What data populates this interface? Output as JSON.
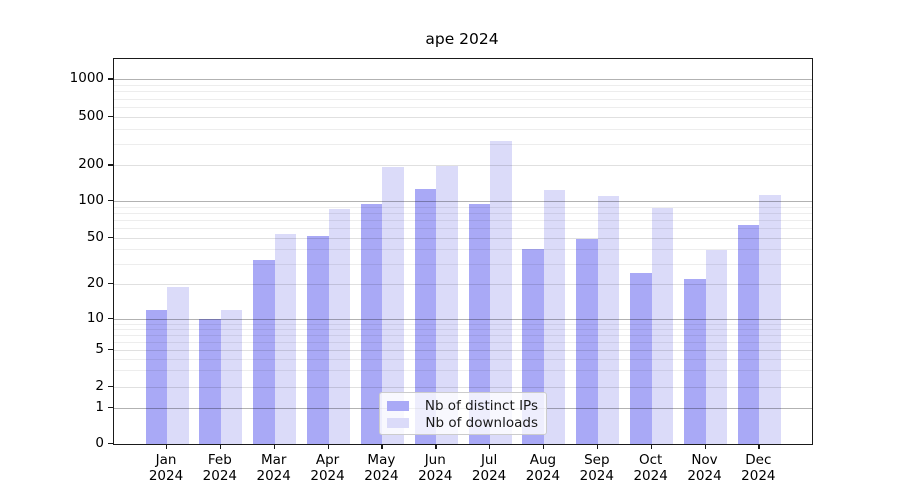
{
  "title": "ape 2024",
  "legend": {
    "items": [
      {
        "label": "Nb of distinct IPs",
        "color": "#a9a9f6"
      },
      {
        "label": "Nb of downloads",
        "color": "#dbdbf9"
      }
    ]
  },
  "chart_data": {
    "type": "bar",
    "title": "ape 2024",
    "categories": [
      "Jan 2024",
      "Feb 2024",
      "Mar 2024",
      "Apr 2024",
      "May 2024",
      "Jun 2024",
      "Jul 2024",
      "Aug 2024",
      "Sep 2024",
      "Oct 2024",
      "Nov 2024",
      "Dec 2024"
    ],
    "series": [
      {
        "name": "Nb of distinct IPs",
        "color": "#a9a9f6",
        "values": [
          12,
          10,
          32,
          52,
          94,
          127,
          95,
          40,
          49,
          25,
          22,
          64
        ]
      },
      {
        "name": "Nb of downloads",
        "color": "#dbdbf9",
        "values": [
          19,
          12,
          54,
          86,
          193,
          198,
          315,
          124,
          110,
          87,
          39,
          112
        ]
      }
    ],
    "xlabel": "",
    "ylabel": "",
    "yscale": "symlog",
    "yticks": [
      0,
      1,
      2,
      5,
      10,
      20,
      50,
      100,
      200,
      500,
      1000
    ],
    "ylim": [
      0,
      1500
    ],
    "grid": "both",
    "legend_position": "lower center"
  }
}
